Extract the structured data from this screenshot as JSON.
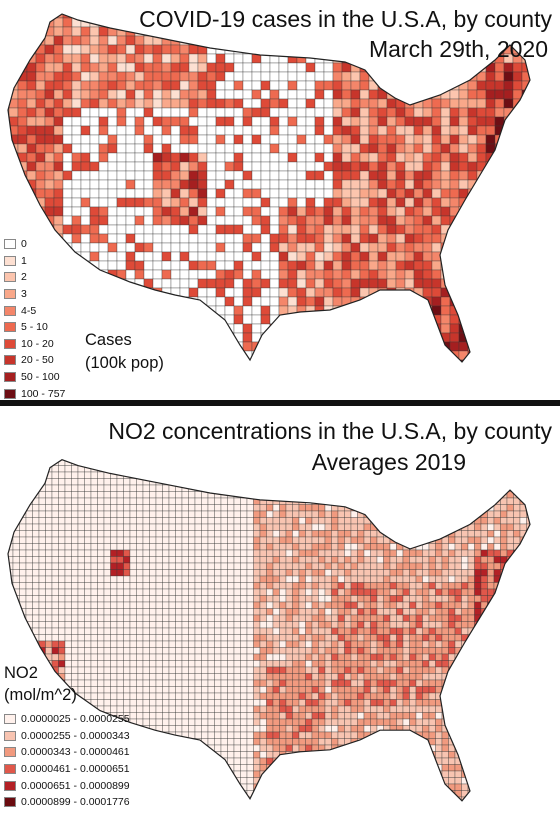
{
  "maps": [
    {
      "title_line1": "COVID-19 cases in the U.S.A, by county",
      "title_line2": "March 29th, 2020",
      "caption_line1": "Cases",
      "caption_line2": "(100k pop)",
      "legend": [
        {
          "label": "0",
          "color": "#ffffff"
        },
        {
          "label": "1",
          "color": "#fde0d2"
        },
        {
          "label": "2",
          "color": "#fcc5ae"
        },
        {
          "label": "3",
          "color": "#f9a88a"
        },
        {
          "label": "4-5",
          "color": "#f4866a"
        },
        {
          "label": "5 - 10",
          "color": "#ee6a50"
        },
        {
          "label": "10 - 20",
          "color": "#de4a38"
        },
        {
          "label": "20 - 50",
          "color": "#c7352b"
        },
        {
          "label": "50 - 100",
          "color": "#a51f20"
        },
        {
          "label": "100 - 757",
          "color": "#6e0e14"
        }
      ]
    },
    {
      "title_line1": "NO2 concentrations in the U.S.A, by county",
      "title_line2": "Averages 2019",
      "caption_line1": "NO2",
      "caption_line2": "(mol/m^2)",
      "legend": [
        {
          "label": "0.0000025 - 0.0000255",
          "color": "#fff1ec"
        },
        {
          "label": "0.0000255 - 0.0000343",
          "color": "#f8c4b1"
        },
        {
          "label": "0.0000343 - 0.0000461",
          "color": "#f19a7f"
        },
        {
          "label": "0.0000461 - 0.0000651",
          "color": "#e0574a"
        },
        {
          "label": "0.0000651 - 0.0000899",
          "color": "#b32025"
        },
        {
          "label": "0.0000899 - 0.0001776",
          "color": "#6a0b10"
        }
      ]
    }
  ],
  "colors": {
    "border": "#444444",
    "divider": "#111111"
  }
}
